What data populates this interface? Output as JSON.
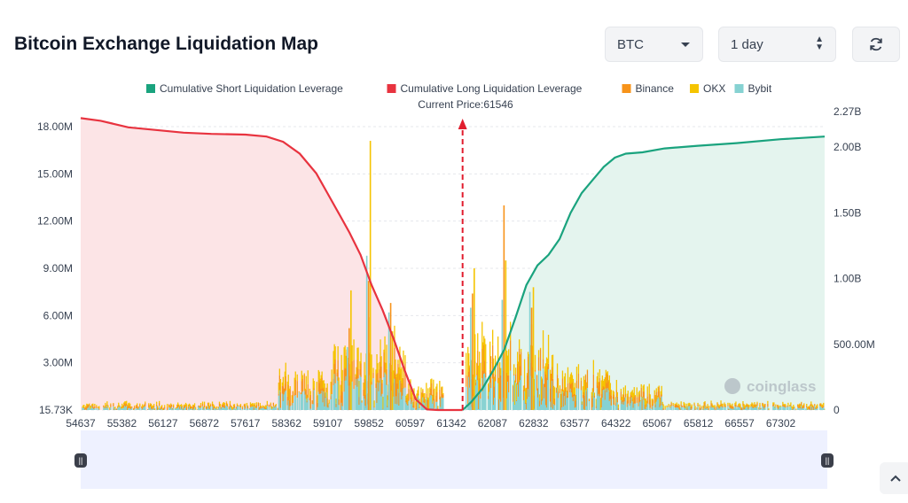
{
  "header": {
    "title": "Bitcoin Exchange Liquidation Map",
    "coin_value": "BTC",
    "range_value": "1 day"
  },
  "icons": {
    "refresh": "refresh-icon",
    "dropdown": "chevron-down-icon",
    "stepper": "up-down-icon",
    "scroll_top": "chevron-up-icon",
    "watermark": "coinglass-logo"
  },
  "watermark_text": "coinglass",
  "colors": {
    "short": "#1aa37e",
    "short_fill": "#e4f4ee",
    "long": "#e8333f",
    "long_fill": "#fce4e6",
    "binance": "#f7931a",
    "okx": "#f5c400",
    "bybit": "#86d2d2",
    "price_line": "#e11d2e"
  },
  "chart_data": {
    "type": "bar",
    "title": "",
    "legend": [
      {
        "key": "short",
        "label": "Cumulative Short Liquidation Leverage"
      },
      {
        "key": "long",
        "label": "Cumulative Long Liquidation Leverage"
      },
      {
        "key": "binance",
        "label": "Binance"
      },
      {
        "key": "okx",
        "label": "OKX"
      },
      {
        "key": "bybit",
        "label": "Bybit"
      }
    ],
    "legend_position": "top-center",
    "current_price_label": "Current Price:61546",
    "current_price": 61546,
    "x_range": [
      54637,
      68096
    ],
    "x_ticks": [
      "54637",
      "55382",
      "56127",
      "56872",
      "57617",
      "58362",
      "59107",
      "59852",
      "60597",
      "61342",
      "62087",
      "62832",
      "63577",
      "64322",
      "65067",
      "65812",
      "66557",
      "67302"
    ],
    "x_tick_values": [
      54637,
      55382,
      56127,
      56872,
      57617,
      58362,
      59107,
      59852,
      60597,
      61342,
      62087,
      62832,
      63577,
      64322,
      65067,
      65812,
      66557,
      67302
    ],
    "y_left": {
      "ticks": [
        "15.73K",
        "3.00M",
        "6.00M",
        "9.00M",
        "12.00M",
        "15.00M",
        "18.00M"
      ],
      "values": [
        0,
        3000000,
        6000000,
        9000000,
        12000000,
        15000000,
        18000000
      ],
      "max": 18000000
    },
    "y_right": {
      "ticks": [
        "0",
        "500.00M",
        "1.00B",
        "1.50B",
        "2.00B",
        "2.27B"
      ],
      "values": [
        0,
        500000000,
        1000000000,
        1500000000,
        2000000000,
        2270000000
      ],
      "max": 2270000000
    },
    "cumulative_long": {
      "x": [
        54637,
        55000,
        55500,
        56000,
        56500,
        57000,
        57617,
        58000,
        58300,
        58600,
        58900,
        59100,
        59300,
        59500,
        59700,
        59900,
        60100,
        60300,
        60500,
        60700,
        60900,
        61100,
        61342,
        61546
      ],
      "y": [
        2220000000,
        2200000000,
        2150000000,
        2130000000,
        2110000000,
        2100000000,
        2095000000,
        2080000000,
        2040000000,
        1950000000,
        1800000000,
        1650000000,
        1500000000,
        1350000000,
        1180000000,
        950000000,
        760000000,
        540000000,
        300000000,
        80000000,
        5000000,
        0,
        0,
        0
      ]
    },
    "cumulative_short": {
      "x": [
        61546,
        61700,
        61900,
        62100,
        62300,
        62500,
        62700,
        62900,
        63100,
        63300,
        63500,
        63700,
        63900,
        64100,
        64300,
        64500,
        64800,
        65200,
        65800,
        66500,
        67300,
        68096
      ],
      "y": [
        0,
        60000000,
        160000000,
        300000000,
        460000000,
        700000000,
        950000000,
        1100000000,
        1180000000,
        1300000000,
        1500000000,
        1650000000,
        1750000000,
        1850000000,
        1920000000,
        1950000000,
        1960000000,
        1990000000,
        2010000000,
        2030000000,
        2060000000,
        2080000000
      ]
    },
    "exchange_bars_note": "per-price-bucket liquidation volume stacked by exchange (Bybit, Binance, OKX)",
    "exchange_peaks": [
      {
        "price": 59800,
        "binance": 8200000,
        "okx": 17100000,
        "bybit": 9800000
      },
      {
        "price": 59450,
        "binance": 5200000,
        "okx": 7600000,
        "bybit": 4000000
      },
      {
        "price": 60200,
        "binance": 6800000,
        "okx": 5000000,
        "bybit": 6200000
      },
      {
        "price": 61680,
        "binance": 7400000,
        "okx": 9000000,
        "bybit": 6500000
      },
      {
        "price": 62250,
        "binance": 13000000,
        "okx": 9500000,
        "bybit": 7000000
      },
      {
        "price": 62750,
        "binance": 6500000,
        "okx": 7800000,
        "bybit": 7500000
      }
    ]
  }
}
